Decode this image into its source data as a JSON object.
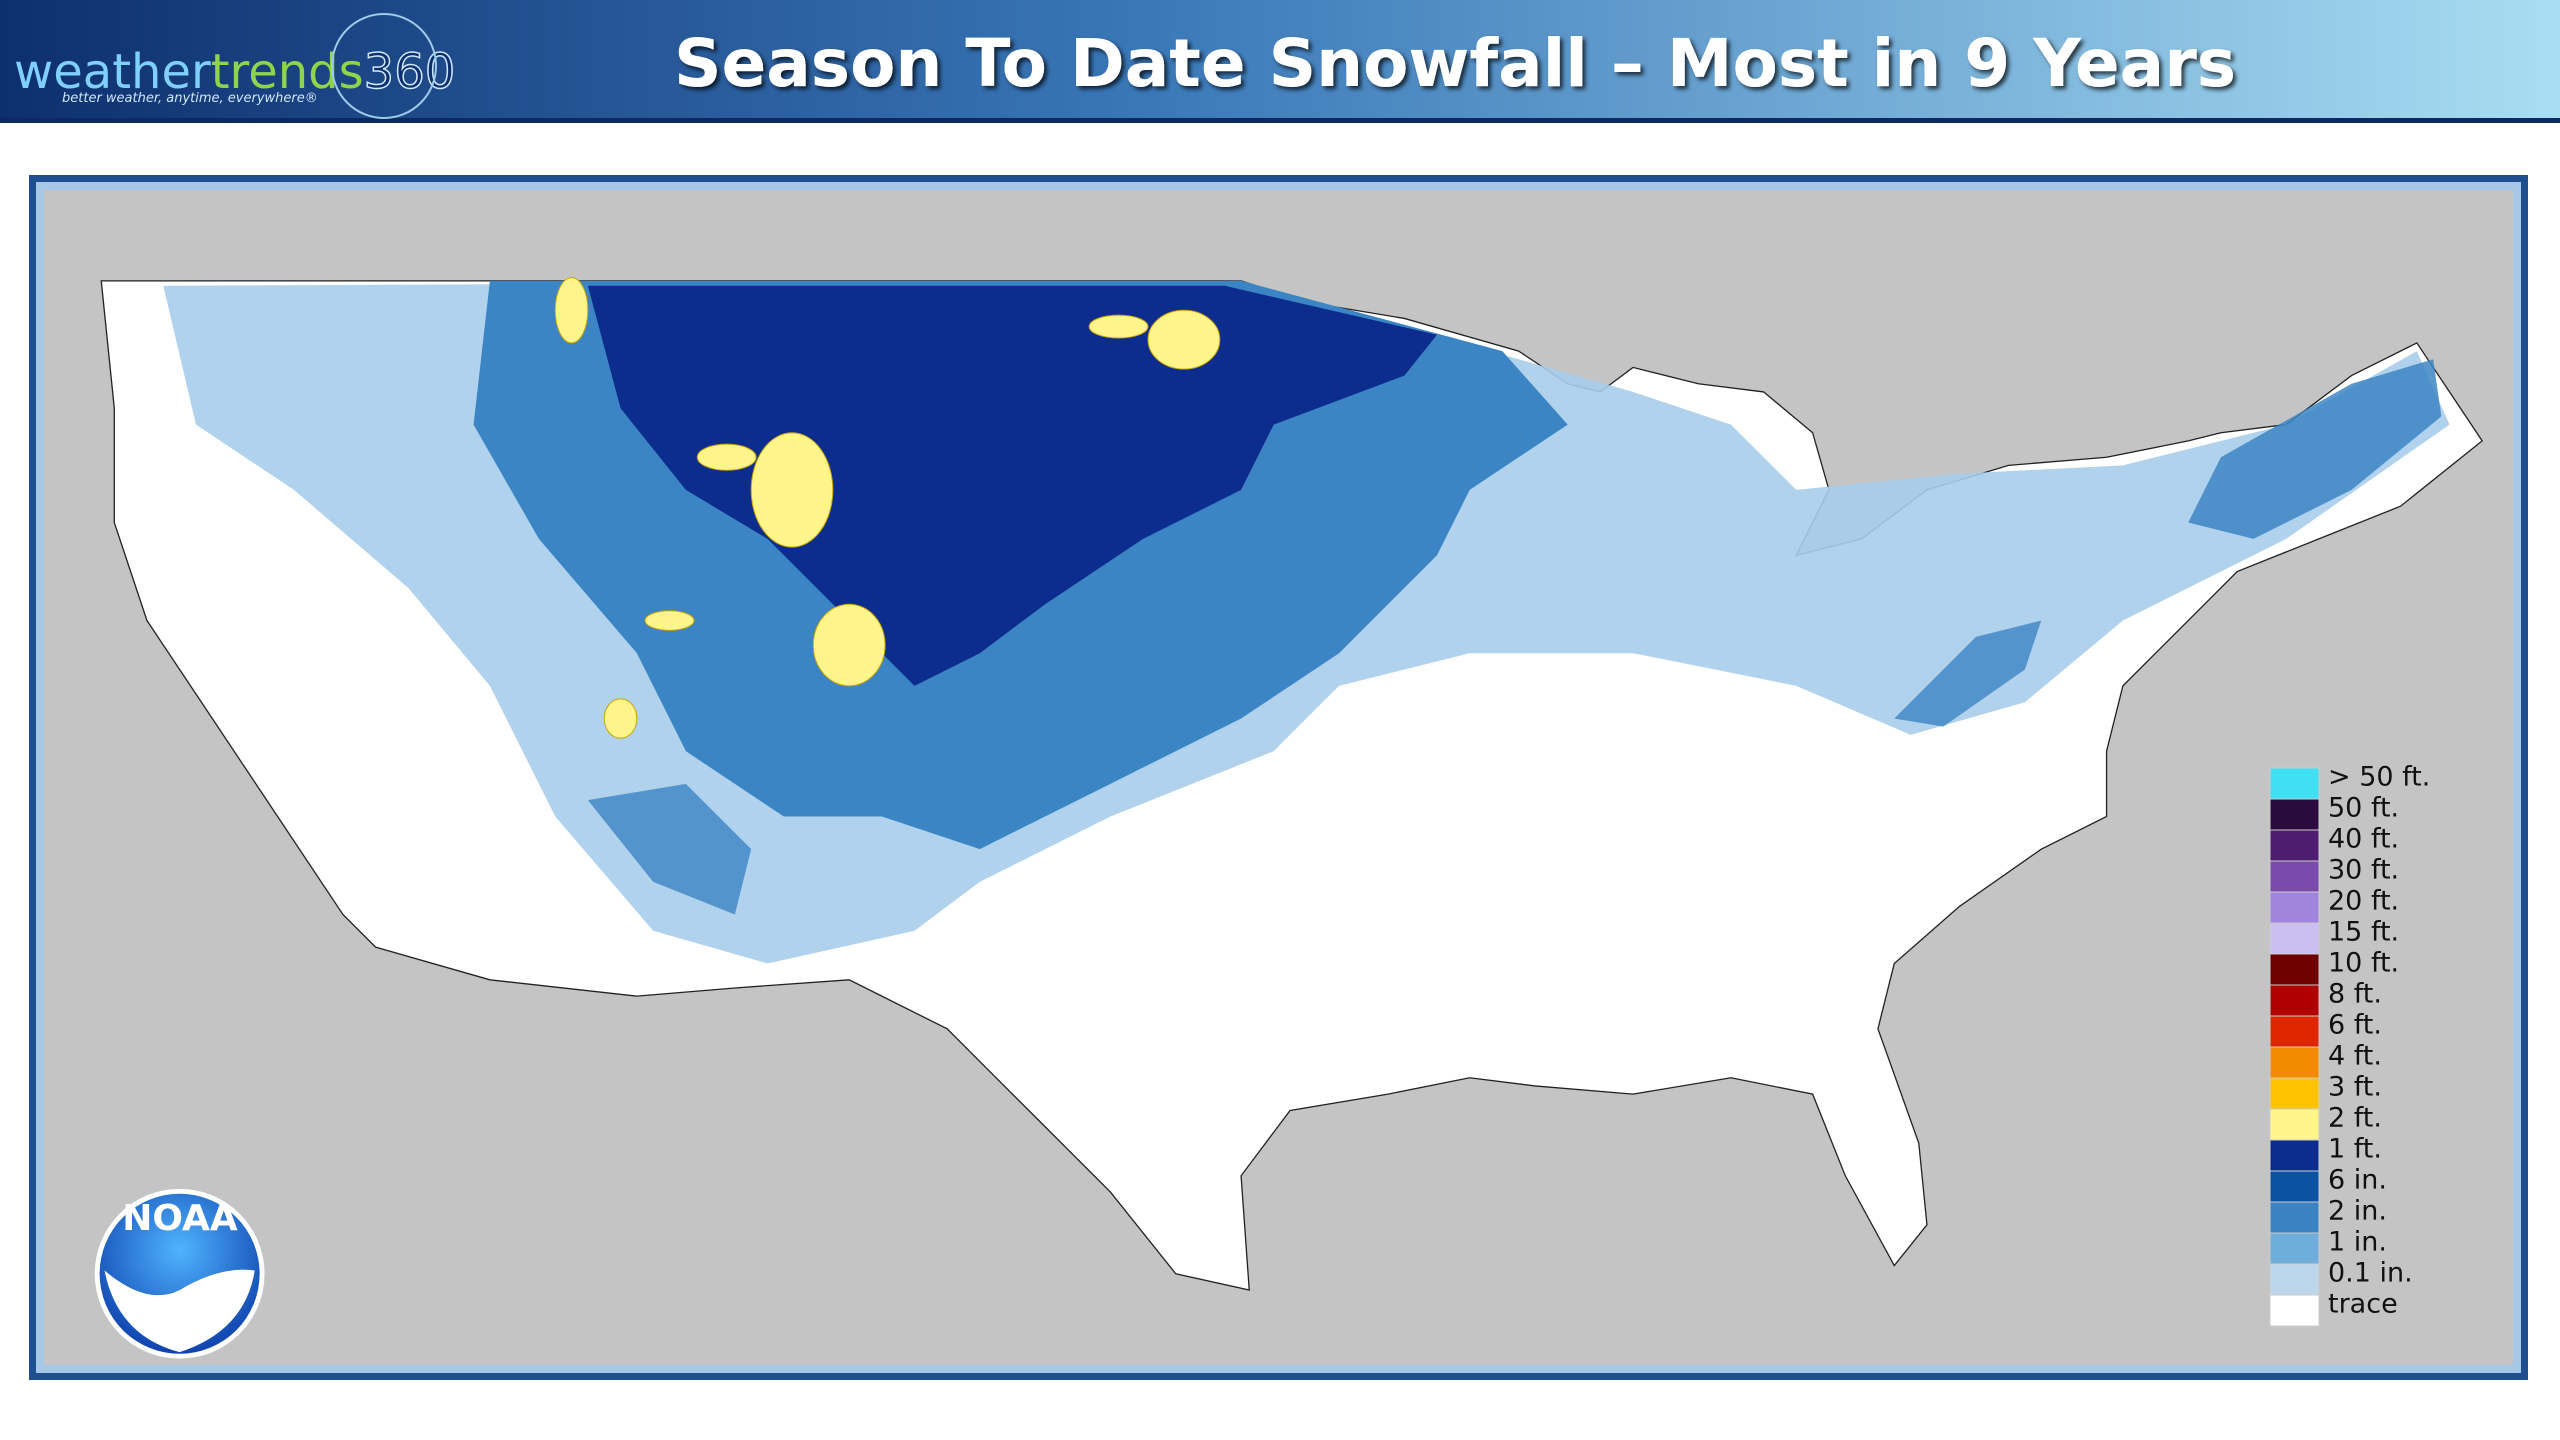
{
  "header": {
    "title": "Season To Date Snowfall – Most in 9 Years",
    "logo": {
      "parts": [
        "weather",
        "trends",
        "360"
      ],
      "tagline": "better weather, anytime, everywhere®"
    }
  },
  "map": {
    "badge": "NOAA",
    "legend": [
      {
        "label": "> 50 ft.",
        "color": "#3fe0f4"
      },
      {
        "label": "50 ft.",
        "color": "#2b0a3d"
      },
      {
        "label": "40 ft.",
        "color": "#4e1d70"
      },
      {
        "label": "30 ft.",
        "color": "#7b4bab"
      },
      {
        "label": "20 ft.",
        "color": "#a184dc"
      },
      {
        "label": "15 ft.",
        "color": "#cbbff2"
      },
      {
        "label": "10 ft.",
        "color": "#6e0000"
      },
      {
        "label": "8 ft.",
        "color": "#b00000"
      },
      {
        "label": "6 ft.",
        "color": "#e02600"
      },
      {
        "label": "4 ft.",
        "color": "#f48a00"
      },
      {
        "label": "3 ft.",
        "color": "#ffc400"
      },
      {
        "label": "2 ft.",
        "color": "#fff58a"
      },
      {
        "label": "1 ft.",
        "color": "#0c2c8e"
      },
      {
        "label": "6 in.",
        "color": "#0b52a2"
      },
      {
        "label": "2 in.",
        "color": "#3a82c2"
      },
      {
        "label": "1 in.",
        "color": "#6fadda"
      },
      {
        "label": "0.1 in.",
        "color": "#bcd6ec"
      },
      {
        "label": "trace",
        "color": "#ffffff"
      }
    ]
  }
}
